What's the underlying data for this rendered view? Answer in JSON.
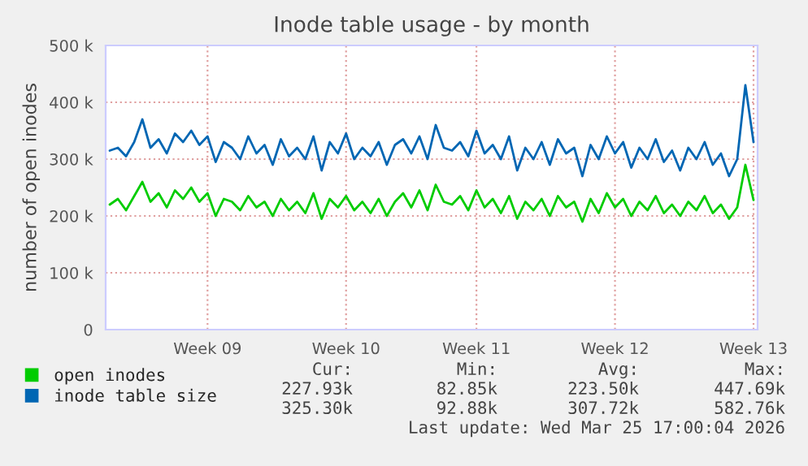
{
  "chart_data": {
    "type": "line",
    "title": "Inode table usage - by month",
    "ylabel": "number of open inodes",
    "categories": [
      null,
      null,
      null,
      null,
      null,
      null,
      null,
      null,
      null,
      null,
      null,
      null,
      "Week 09",
      null,
      null,
      null,
      null,
      null,
      null,
      null,
      null,
      null,
      null,
      null,
      null,
      null,
      null,
      null,
      null,
      "Week 10",
      null,
      null,
      null,
      null,
      null,
      null,
      null,
      null,
      null,
      null,
      null,
      null,
      null,
      null,
      null,
      "Week 11",
      null,
      null,
      null,
      null,
      null,
      null,
      null,
      null,
      null,
      null,
      null,
      null,
      null,
      null,
      null,
      null,
      "Week 12",
      null,
      null,
      null,
      null,
      null,
      null,
      null,
      null,
      null,
      null,
      null,
      null,
      null,
      null,
      null,
      null,
      "Week 13"
    ],
    "series": [
      {
        "name": "open inodes",
        "color": "#00cc00",
        "values": [
          220000,
          230000,
          210000,
          235000,
          260000,
          225000,
          240000,
          215000,
          245000,
          230000,
          250000,
          225000,
          240000,
          200000,
          230000,
          225000,
          210000,
          235000,
          215000,
          225000,
          200000,
          230000,
          210000,
          225000,
          205000,
          240000,
          195000,
          230000,
          215000,
          235000,
          210000,
          225000,
          205000,
          230000,
          200000,
          225000,
          240000,
          215000,
          245000,
          210000,
          255000,
          225000,
          220000,
          235000,
          210000,
          245000,
          215000,
          230000,
          205000,
          235000,
          195000,
          225000,
          210000,
          230000,
          200000,
          235000,
          215000,
          225000,
          190000,
          230000,
          205000,
          240000,
          215000,
          230000,
          200000,
          225000,
          210000,
          235000,
          205000,
          220000,
          200000,
          225000,
          210000,
          235000,
          205000,
          220000,
          195000,
          215000,
          290000,
          228000
        ]
      },
      {
        "name": "inode table size",
        "color": "#0066b3",
        "values": [
          315000,
          320000,
          305000,
          330000,
          370000,
          320000,
          335000,
          310000,
          345000,
          330000,
          350000,
          325000,
          340000,
          295000,
          330000,
          320000,
          300000,
          340000,
          310000,
          325000,
          290000,
          335000,
          305000,
          320000,
          300000,
          340000,
          280000,
          330000,
          310000,
          345000,
          300000,
          320000,
          305000,
          330000,
          290000,
          325000,
          335000,
          310000,
          340000,
          300000,
          360000,
          320000,
          315000,
          330000,
          305000,
          350000,
          310000,
          325000,
          300000,
          340000,
          280000,
          320000,
          300000,
          330000,
          290000,
          335000,
          310000,
          320000,
          270000,
          325000,
          300000,
          340000,
          310000,
          330000,
          285000,
          320000,
          300000,
          335000,
          295000,
          315000,
          280000,
          320000,
          300000,
          330000,
          290000,
          310000,
          270000,
          300000,
          430000,
          330000
        ]
      }
    ],
    "ylim": [
      0,
      500000
    ],
    "yticks": [
      {
        "value": 0,
        "label": "0"
      },
      {
        "value": 100000,
        "label": "100 k"
      },
      {
        "value": 200000,
        "label": "200 k"
      },
      {
        "value": 300000,
        "label": "300 k"
      },
      {
        "value": 400000,
        "label": "400 k"
      },
      {
        "value": 500000,
        "label": "500 k"
      }
    ],
    "grid": true,
    "legend": "bottom",
    "marker": "none",
    "line_style": "solid",
    "annotations": [
      "Cur:",
      "Min:",
      "Avg:",
      "Max:",
      "227.93k",
      "82.85k",
      "223.50k",
      "447.69k",
      "325.30k",
      "92.88k",
      "307.72k",
      "582.76k",
      "Last update: Wed Mar 25 17:00:04 2026"
    ]
  }
}
